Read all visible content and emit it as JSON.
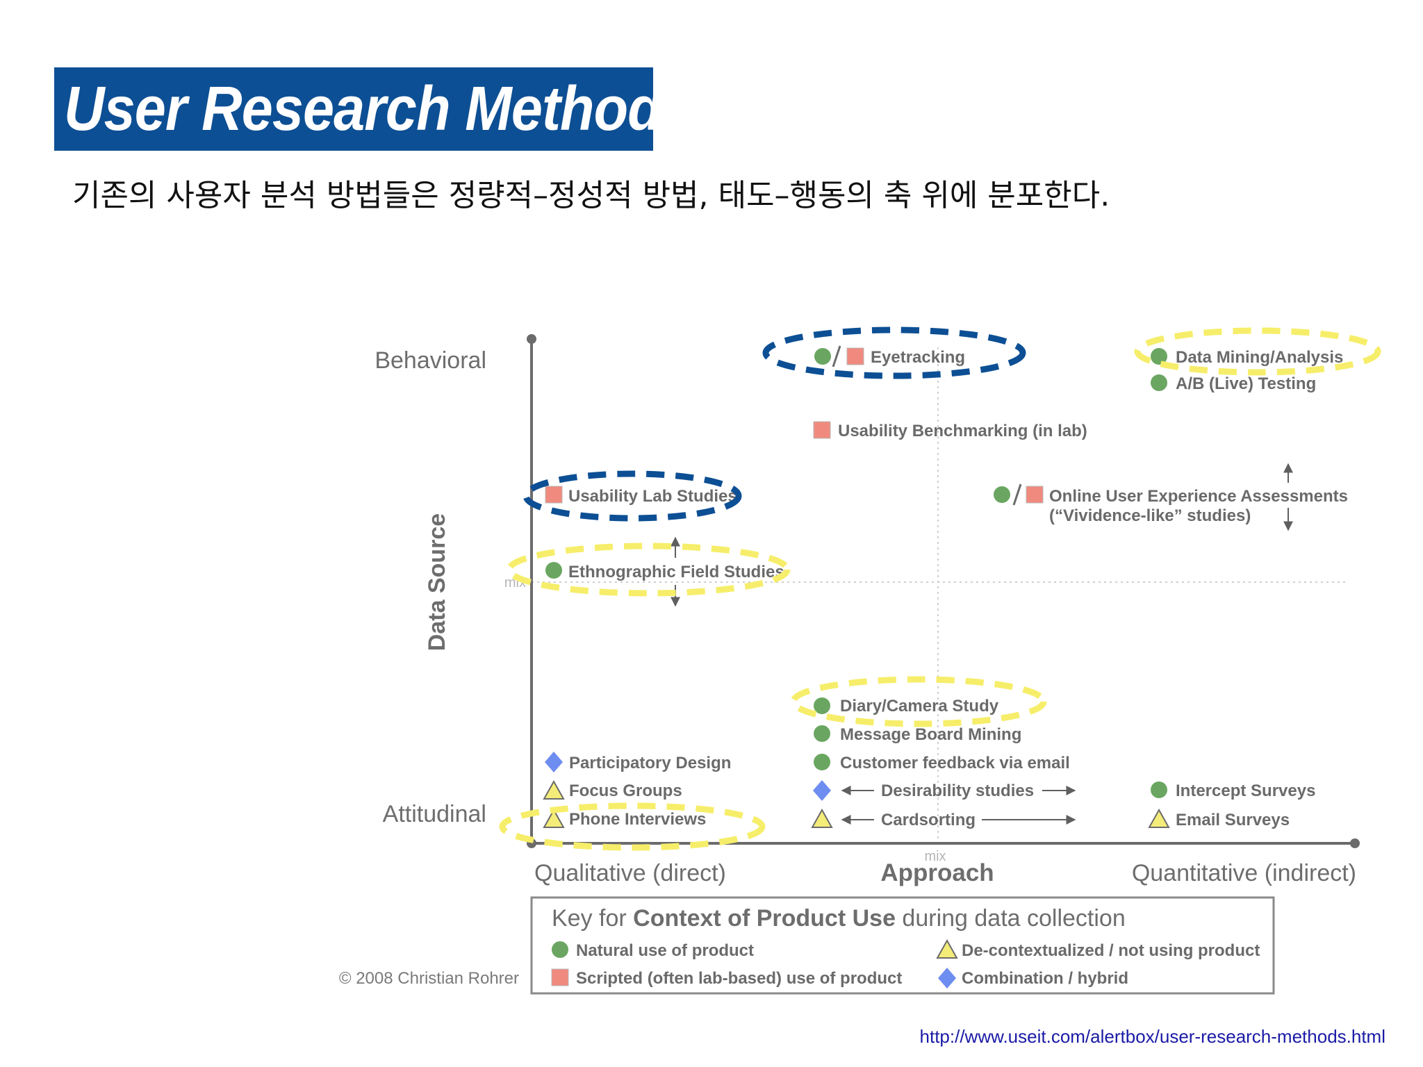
{
  "slide": {
    "title": "User Research Methods",
    "subtitle": "기존의 사용자 분석 방법들은 정량적–정성적 방법, 태도–행동의 축 위에 분포한다.",
    "source_url": "http://www.useit.com/alertbox/user-research-methods.html"
  },
  "diagram": {
    "y_axis": {
      "title": "Data Source",
      "top": "Behavioral",
      "bottom": "Attitudinal",
      "mid": "mix"
    },
    "x_axis": {
      "title": "Approach",
      "left": "Qualitative (direct)",
      "right": "Quantitative (indirect)",
      "mid": "mix"
    },
    "copyright": "© 2008 Christian Rohrer",
    "methods": {
      "eyetracking": "Eyetracking",
      "data_mining": "Data Mining/Analysis",
      "ab_testing": "A/B (Live) Testing",
      "usability_benchmarking": "Usability Benchmarking (in lab)",
      "usability_lab": "Usability Lab Studies",
      "online_ux_1": "Online User Experience Assessments",
      "online_ux_2": "(“Vividence-like” studies)",
      "ethnographic": "Ethnographic Field Studies",
      "diary": "Diary/Camera Study",
      "message_board": "Message Board Mining",
      "customer_feedback": "Customer feedback via email",
      "participatory": "Participatory Design",
      "focus_groups": "Focus Groups",
      "phone_interviews": "Phone Interviews",
      "desirability": "Desirability studies",
      "cardsorting": "Cardsorting",
      "intercept": "Intercept Surveys",
      "email_surveys": "Email Surveys"
    },
    "key": {
      "title_prefix": "Key for ",
      "title_bold": "Context of Product Use",
      "title_suffix": " during data collection",
      "natural": "Natural use of product",
      "scripted": "Scripted (often lab-based) use of product",
      "decontext": "De-contextualized / not using product",
      "combination": "Combination / hybrid"
    },
    "colors": {
      "natural_circle": "#6aa661",
      "scripted_square": "#f08a7e",
      "combination_diamond": "#6e8df0",
      "decontext_triangle": "#f4ec79",
      "highlight_blue": "#0d4f94",
      "highlight_yellow": "#f6ee6a"
    }
  }
}
